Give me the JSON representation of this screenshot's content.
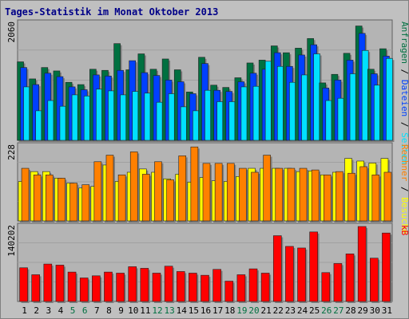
{
  "chart_data": {
    "type": "bar",
    "title": "Tages-Statistik im Monat Oktober 2013",
    "colors": {
      "background": "#c0c0c0",
      "plot_bg": "#b4b4b4",
      "border": "#808080",
      "title": "#000088",
      "anfragen": "#007040",
      "dateien": "#0040ff",
      "seiten": "#00e0ff",
      "besuche": "#ffff00",
      "rechner": "#ff8000",
      "kb": "#ff0000",
      "weekend_day": "#007040"
    },
    "days": [
      "1",
      "2",
      "3",
      "4",
      "5",
      "6",
      "7",
      "8",
      "9",
      "10",
      "11",
      "12",
      "13",
      "14",
      "15",
      "16",
      "17",
      "18",
      "19",
      "20",
      "21",
      "22",
      "23",
      "24",
      "25",
      "26",
      "27",
      "28",
      "29",
      "30",
      "31"
    ],
    "weekend_days": [
      "5",
      "6",
      "12",
      "13",
      "19",
      "20",
      "26",
      "27"
    ],
    "panels": [
      {
        "max_label": "2060",
        "ylim": [
          0,
          2060
        ],
        "legend": [
          {
            "text": "Anfragen",
            "color": "#007040"
          },
          {
            "text": "Dateien",
            "color": "#0040ff"
          },
          {
            "text": "Seiten",
            "color": "#00e0ff"
          }
        ],
        "separator": "/",
        "series": [
          {
            "name": "Anfragen",
            "color": "#007040",
            "values": [
              1380,
              1080,
              1280,
              1220,
              1020,
              980,
              1250,
              1230,
              1700,
              1240,
              1520,
              1250,
              1430,
              1240,
              850,
              1460,
              970,
              930,
              1100,
              1360,
              1410,
              1660,
              1540,
              1620,
              1790,
              1010,
              1160,
              1530,
              2010,
              1250,
              1610
            ]
          },
          {
            "name": "Dateien",
            "color": "#0040ff",
            "values": [
              1280,
              980,
              1180,
              1120,
              940,
              890,
              1150,
              1130,
              1230,
              1400,
              1190,
              1140,
              1060,
              1030,
              820,
              1350,
              880,
              860,
              1030,
              1180,
              1250,
              1540,
              1300,
              1500,
              1680,
              920,
              1060,
              1410,
              1880,
              1170,
              1480
            ]
          },
          {
            "name": "Seiten",
            "color": "#00e0ff",
            "values": [
              940,
              520,
              700,
              600,
              800,
              780,
              900,
              870,
              800,
              860,
              830,
              670,
              820,
              590,
              520,
              880,
              680,
              680,
              940,
              950,
              1390,
              1300,
              1020,
              1150,
              1520,
              700,
              740,
              1170,
              1580,
              970,
              1440
            ]
          }
        ]
      },
      {
        "max_label": "228",
        "ylim": [
          0,
          228
        ],
        "legend": [
          {
            "text": "Rechner",
            "color": "#ff8000"
          },
          {
            "text": "Besuche",
            "color": "#ffff00"
          }
        ],
        "separator": "/",
        "series": [
          {
            "name": "Besuche",
            "color": "#ffff00",
            "values": [
              120,
              150,
              150,
              130,
              115,
              100,
              105,
              170,
              120,
              148,
              158,
              148,
              128,
              142,
              118,
              132,
              122,
              120,
              135,
              160,
              160,
              160,
              160,
              150,
              152,
              140,
              148,
              190,
              182,
              176,
              190
            ]
          },
          {
            "name": "Rechner",
            "color": "#ff8000",
            "values": [
              160,
              140,
              140,
              130,
              115,
              110,
              180,
              200,
              140,
              210,
              142,
              180,
              125,
              198,
              225,
              175,
              175,
              175,
              160,
              148,
              200,
              160,
              160,
              160,
              155,
              140,
              150,
              145,
              165,
              140,
              148
            ]
          }
        ]
      },
      {
        "max_label": "140202",
        "ylim": [
          0,
          140202
        ],
        "legend": [
          {
            "text": "kB",
            "color": "#ff0000"
          }
        ],
        "separator": "",
        "series": [
          {
            "name": "kB",
            "color": "#ff0000",
            "values": [
              63000,
              50000,
              70000,
              68000,
              55000,
              44000,
              48000,
              55000,
              53000,
              65000,
              62000,
              53000,
              66000,
              56000,
              53000,
              49000,
              60000,
              38000,
              50000,
              61000,
              53000,
              123000,
              103000,
              100000,
              130000,
              54000,
              71000,
              89000,
              140202,
              81000,
              128000
            ]
          }
        ]
      }
    ]
  }
}
